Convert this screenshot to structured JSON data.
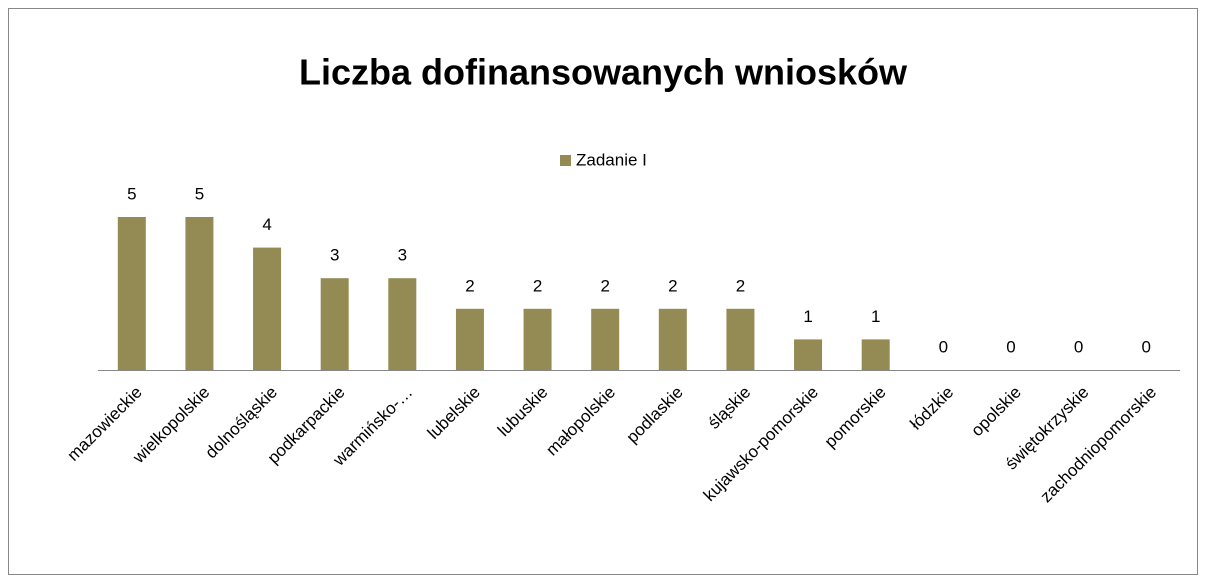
{
  "chart_data": {
    "type": "bar",
    "title": "Liczba dofinansowanych wniosków",
    "categories": [
      "mazowieckie",
      "wielkopolskie",
      "dolnośląskie",
      "podkarpackie",
      "warmińsko-…",
      "lubelskie",
      "lubuskie",
      "małopolskie",
      "podlaskie",
      "śląskie",
      "kujawsko-pomorskie",
      "pomorskie",
      "łódzkie",
      "opolskie",
      "świętokrzyskie",
      "zachodniopomorskie"
    ],
    "series": [
      {
        "name": "Zadanie I",
        "color": "#948a54",
        "values": [
          5,
          5,
          4,
          3,
          3,
          2,
          2,
          2,
          2,
          2,
          1,
          1,
          0,
          0,
          0,
          0
        ]
      }
    ],
    "legend": "top"
  }
}
